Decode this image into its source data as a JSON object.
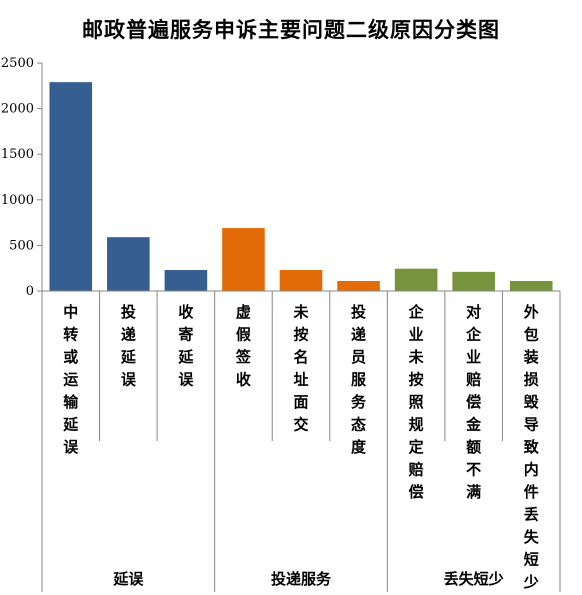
{
  "chart_data": {
    "type": "bar",
    "title": "邮政普遍服务申诉主要问题二级原因分类图",
    "xlabel": "",
    "ylabel": "",
    "ylim": [
      0,
      2500
    ],
    "yticks": [
      0,
      500,
      1000,
      1500,
      2000,
      2500
    ],
    "grid": false,
    "legend": "none",
    "categories": [
      "中转或运输延误",
      "投递延误",
      "收寄延误",
      "虚假签收",
      "未按名址面交",
      "投递员服务态度",
      "企业未按照规定赔偿",
      "对企业赔偿金额不满",
      "外包装损毁导致内件丢失短少"
    ],
    "values": [
      2290,
      590,
      230,
      690,
      230,
      110,
      245,
      210,
      110
    ],
    "groups": [
      {
        "label": "延误",
        "count": 3,
        "color": "#365F91"
      },
      {
        "label": "投递服务",
        "count": 3,
        "color": "#E36C09"
      },
      {
        "label": "丢失短少",
        "count": 3,
        "color": "#77933C"
      }
    ]
  }
}
